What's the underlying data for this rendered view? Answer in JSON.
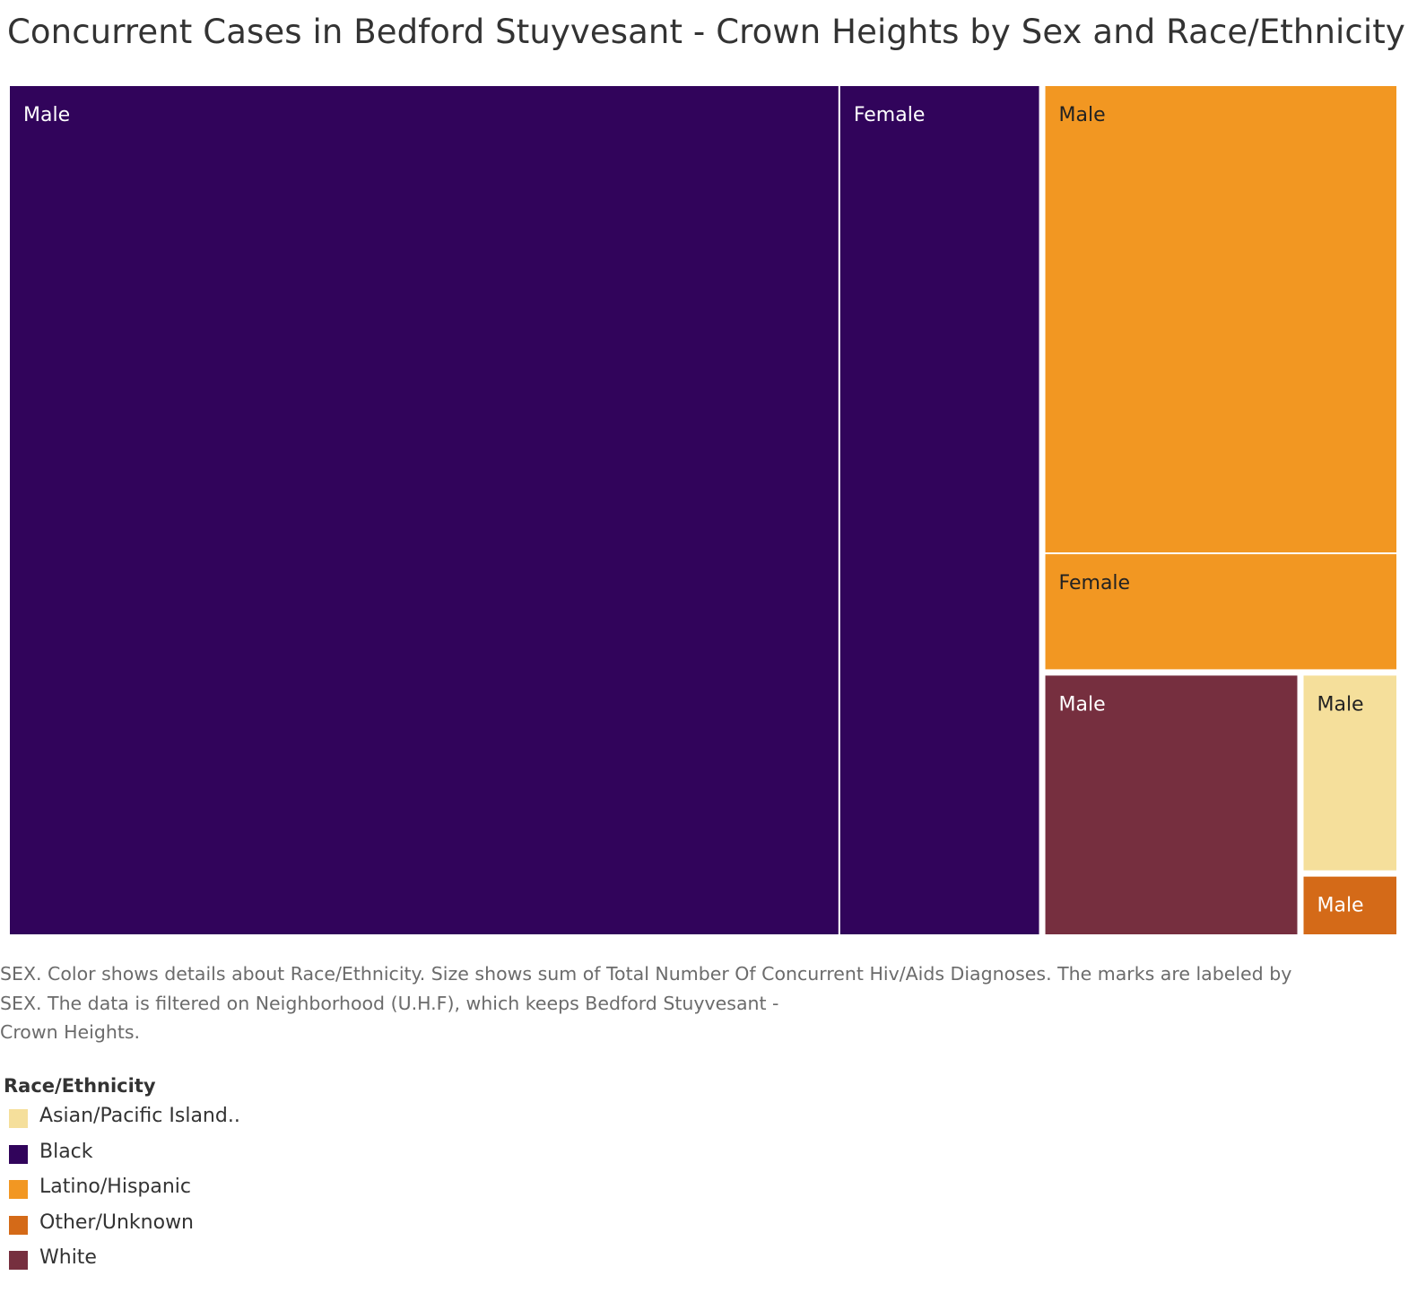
{
  "chart_data": {
    "type": "treemap",
    "title": "Concurrent Cases in Bedford Stuyvesant - Crown Heights by Sex and Race/Ethnicity",
    "size_measure": "Total Number Of Concurrent Hiv/Aids Diagnoses",
    "label_field": "SEX",
    "color_field": "Race/Ethnicity",
    "groups": [
      {
        "race": "Black",
        "color": "#31045b",
        "tiles": [
          {
            "sex": "Male",
            "value": 1000,
            "label_color": "#ffffff"
          },
          {
            "sex": "Female",
            "value": 240,
            "label_color": "#ffffff"
          }
        ]
      },
      {
        "race": "Latino/Hispanic",
        "color": "#f29722",
        "tiles": [
          {
            "sex": "Male",
            "value": 235,
            "label_color": "#222222"
          },
          {
            "sex": "Female",
            "value": 58,
            "label_color": "#222222"
          }
        ]
      },
      {
        "race": "White",
        "color": "#762f3f",
        "tiles": [
          {
            "sex": "Male",
            "value": 95,
            "label_color": "#ffffff"
          }
        ]
      },
      {
        "race": "Asian/Pacific Island..",
        "color": "#f5df9b",
        "tiles": [
          {
            "sex": "Male",
            "value": 27,
            "label_color": "#222222"
          }
        ]
      },
      {
        "race": "Other/Unknown",
        "color": "#d46a18",
        "tiles": [
          {
            "sex": "Male",
            "value": 8,
            "label_color": "#ffffff"
          }
        ]
      }
    ]
  },
  "caption": {
    "line1": "SEX.  Color shows details about Race/Ethnicity.  Size shows sum of Total Number Of Concurrent Hiv/Aids Diagnoses.  The marks are labeled by",
    "line2": "SEX. The data is filtered on Neighborhood (U.H.F), which keeps Bedford Stuyvesant -",
    "line3": "Crown Heights."
  },
  "legend": {
    "title": "Race/Ethnicity",
    "items": [
      {
        "label": "Asian/Pacific Island..",
        "color": "#f5df9b"
      },
      {
        "label": "Black",
        "color": "#31045b"
      },
      {
        "label": "Latino/Hispanic",
        "color": "#f29722"
      },
      {
        "label": "Other/Unknown",
        "color": "#d46a18"
      },
      {
        "label": "White",
        "color": "#762f3f"
      }
    ]
  }
}
